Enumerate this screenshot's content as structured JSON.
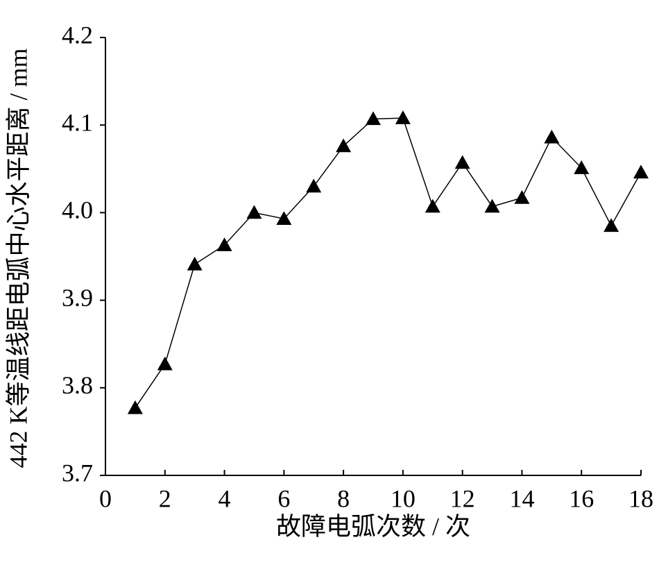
{
  "chart_data": {
    "type": "line",
    "x_label": "故障电弧次数 / 次",
    "y_label": "442 K等温线距电弧中心水平距离 / mm",
    "x": [
      1,
      2,
      3,
      4,
      5,
      6,
      7,
      8,
      9,
      10,
      11,
      12,
      13,
      14,
      15,
      16,
      17,
      18
    ],
    "series": [
      {
        "color": "#000000",
        "marker": "triangle",
        "values": [
          3.777,
          3.827,
          3.941,
          3.963,
          4.0,
          3.993,
          4.03,
          4.076,
          4.107,
          4.108,
          4.007,
          4.057,
          4.007,
          4.017,
          4.086,
          4.051,
          3.985,
          4.046
        ]
      }
    ],
    "xlim": [
      0,
      18
    ],
    "xticks": [
      0,
      2,
      4,
      6,
      8,
      10,
      12,
      14,
      16,
      18
    ],
    "ylim": [
      3.7,
      4.2
    ],
    "yticks": [
      3.7,
      3.8,
      3.9,
      {
        "value": 4,
        "label": "4.0"
      },
      4.1,
      4.2
    ],
    "grid": false
  }
}
